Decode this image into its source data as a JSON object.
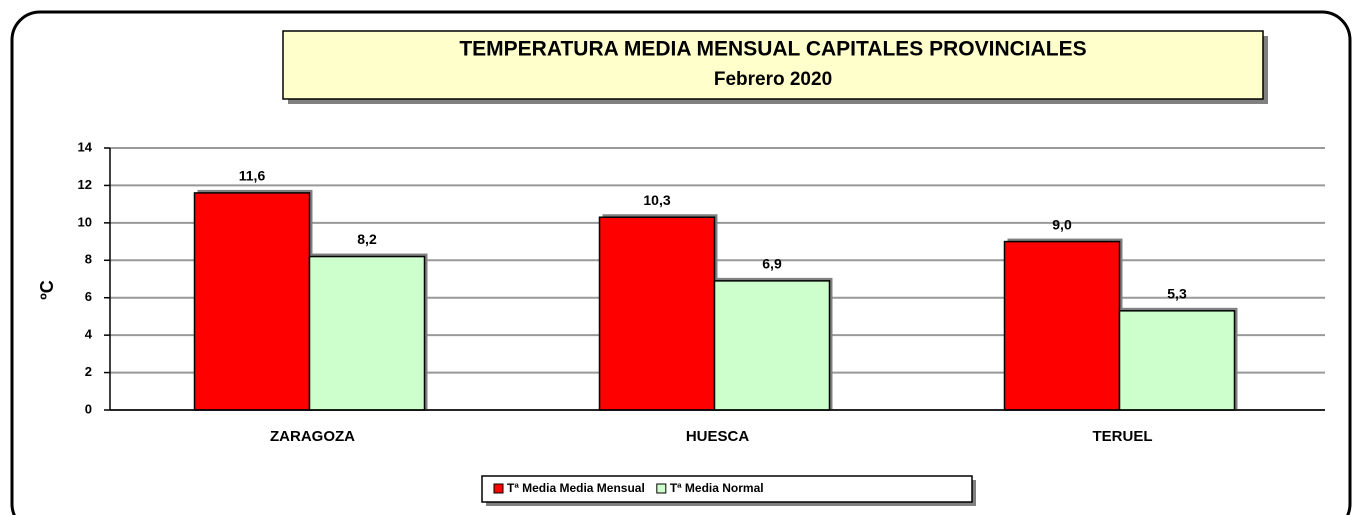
{
  "chart_data": {
    "type": "bar",
    "title": "TEMPERATURA MEDIA MENSUAL CAPITALES PROVINCIALES",
    "subtitle": "Febrero 2020",
    "y_label": "ºC",
    "categories": [
      "ZARAGOZA",
      "HUESCA",
      "TERUEL"
    ],
    "series": [
      {
        "name": "Tª Media Media Mensual",
        "color": "#ff0000",
        "values": [
          11.6,
          10.3,
          9.0
        ],
        "value_labels": [
          "11,6",
          "10,3",
          "9,0"
        ]
      },
      {
        "name": "Tª Media Normal",
        "color": "#ccffcc",
        "values": [
          8.2,
          6.9,
          5.3
        ],
        "value_labels": [
          "8,2",
          "6,9",
          "5,3"
        ]
      }
    ],
    "ylim": [
      0,
      14
    ],
    "yticks": [
      0,
      2,
      4,
      6,
      8,
      10,
      12,
      14
    ],
    "grid": true,
    "legend": "bottom"
  }
}
